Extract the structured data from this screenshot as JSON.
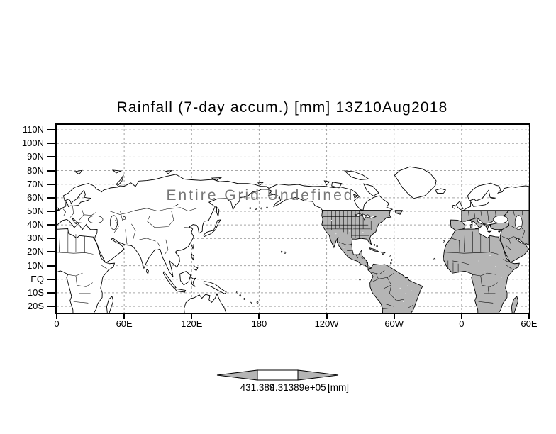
{
  "title": "Rainfall (7-day accum.) [mm] 13Z10Aug2018",
  "watermark_text": "Entire Grid Undefined",
  "y_axis": {
    "labels": [
      "110N",
      "100N",
      "90N",
      "80N",
      "70N",
      "60N",
      "50N",
      "40N",
      "30N",
      "20N",
      "10N",
      "EQ",
      "10S",
      "20S"
    ],
    "lats": [
      110,
      100,
      90,
      80,
      70,
      60,
      50,
      40,
      30,
      20,
      10,
      0,
      -10,
      -20
    ]
  },
  "x_axis": {
    "labels": [
      "0",
      "60E",
      "120E",
      "180",
      "120W",
      "60W",
      "0",
      "60E"
    ],
    "lons": [
      0,
      60,
      120,
      180,
      240,
      300,
      360,
      420
    ]
  },
  "colorbar": {
    "left_label": "431.389",
    "right_label": "4.31389e+05",
    "units_label": "[mm]"
  },
  "colors": {
    "land_gray": "#b5b5b5",
    "grid_gray": "#a6a6a6",
    "watermark_gray": "#777777",
    "line_black": "#000000",
    "background": "#ffffff"
  },
  "chart_data": {
    "type": "heatmap",
    "title": "Rainfall (7-day accum.) [mm] 13Z10Aug2018",
    "variable": "Rainfall (7-day accum.)",
    "units": "mm",
    "valid_time": "13Z10Aug2018",
    "projection": "equirectangular world map",
    "x_tick_labels": [
      "0",
      "60E",
      "120E",
      "180",
      "120W",
      "60W",
      "0",
      "60E"
    ],
    "y_tick_labels": [
      "110N",
      "100N",
      "90N",
      "80N",
      "70N",
      "60N",
      "50N",
      "40N",
      "30N",
      "20N",
      "10N",
      "EQ",
      "10S",
      "20S"
    ],
    "x_range_deg_east": [
      0,
      420
    ],
    "y_range_deg_north": [
      -24.7,
      113.7
    ],
    "grid": true,
    "legend_position": "bottom-center",
    "colorbar_tick_labels": [
      "431.389",
      "4.31389e+05"
    ],
    "annotation": "Entire Grid Undefined",
    "values": []
  }
}
